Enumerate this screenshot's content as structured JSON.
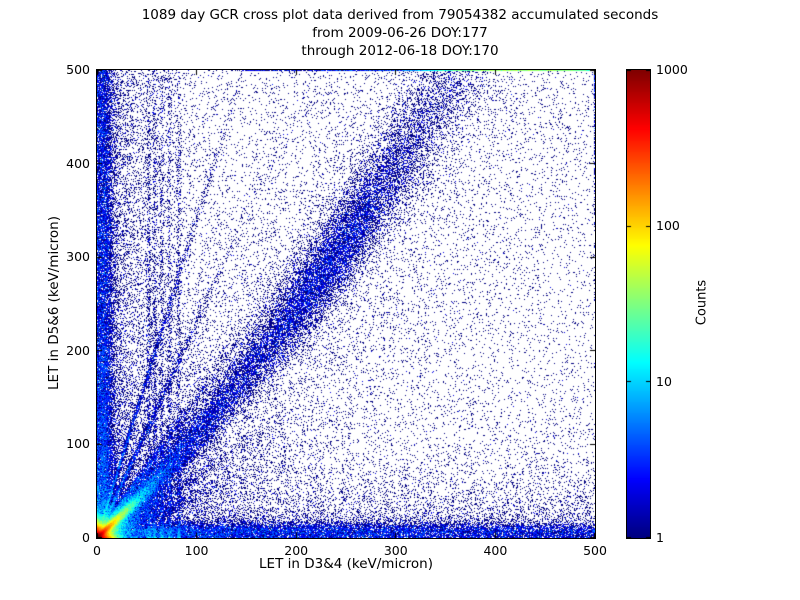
{
  "chart_data": {
    "type": "heatmap",
    "subtype": "2d-density-cross-plot, log color scale",
    "title_lines": [
      "1089 day GCR cross plot data derived from 79054382 accumulated seconds",
      "from 2009-06-26 DOY:177",
      "through 2012-06-18 DOY:170"
    ],
    "xlabel": "LET in D3&4 (keV/micron)",
    "ylabel": "LET in D5&6 (keV/micron)",
    "xlim": [
      0,
      500
    ],
    "ylim": [
      0,
      500
    ],
    "x_ticks": [
      0,
      100,
      200,
      300,
      400,
      500
    ],
    "y_ticks": [
      0,
      100,
      200,
      300,
      400,
      500
    ],
    "grid": false,
    "background": "#ffffff",
    "colorbar": {
      "label": "Counts",
      "scale": "log",
      "min": 1,
      "max": 1000,
      "ticks": [
        1,
        10,
        100,
        1000
      ],
      "colormap": "jet"
    },
    "seed": 20120618,
    "density_features": [
      {
        "type": "corner",
        "n": 35000,
        "scale": 5
      },
      {
        "type": "diag_hot",
        "n": 30000,
        "t_scale": 14,
        "perp0": 1.2,
        "perp_k": 0.06
      },
      {
        "type": "diag_band",
        "n": 26000,
        "power": 1.8,
        "curve": 0.0011,
        "perp0": 4,
        "perp_k": 0.055
      },
      {
        "type": "diag_band",
        "n": 9000,
        "power": 1.3,
        "curve": 0.0008,
        "perp0": 25,
        "perp_k": 0.22
      },
      {
        "type": "diag_blob",
        "n": 7000,
        "center": 240,
        "sd": 45,
        "perp": 14,
        "curve": 0.0011
      },
      {
        "type": "hband",
        "n": 14000,
        "mean": 7,
        "sd": 5,
        "power": 1.6
      },
      {
        "type": "vband",
        "n": 14000,
        "mean": 7,
        "sd": 5,
        "power": 1.6
      },
      {
        "type": "left_smear",
        "n": 10000,
        "xscale": 30,
        "ypower": 1.3
      },
      {
        "type": "bottom_smear",
        "n": 8000,
        "yscale": 30,
        "xpower": 1.3
      },
      {
        "type": "rays",
        "slopes": [
          0.45,
          0.65,
          1.5,
          2.3,
          3.4
        ],
        "n_per": 2200,
        "t_scale": 45,
        "t_max": 260,
        "perp": 2.2
      },
      {
        "type": "vstreaks",
        "xs": [
          52,
          58,
          65,
          73,
          82
        ],
        "n_per": 850,
        "sd": 1.3,
        "ypower": 2.0
      },
      {
        "type": "uniform",
        "n": 6000,
        "power": 1.0
      },
      {
        "type": "uniform",
        "n": 9000,
        "power": 1.6
      }
    ]
  }
}
